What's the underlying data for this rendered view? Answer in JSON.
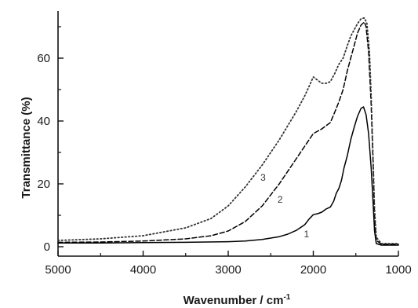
{
  "chart_data": {
    "type": "line",
    "xlabel": "Wavenumber / cm",
    "xlabel_sup": "-1",
    "ylabel": "Transmittance (%)",
    "xlim": [
      5000,
      1000
    ],
    "ylim": [
      -3,
      75
    ],
    "x_reversed": true,
    "x_ticks": [
      5000,
      4000,
      3000,
      2000,
      1000
    ],
    "y_ticks": [
      0,
      20,
      40,
      60
    ],
    "grid": false,
    "series": [
      {
        "name": "1",
        "style": "solid",
        "color": "#000000",
        "label_at": [
          2080,
          3
        ],
        "points": [
          [
            5000,
            1.2
          ],
          [
            4500,
            1.2
          ],
          [
            4000,
            1.3
          ],
          [
            3500,
            1.4
          ],
          [
            3000,
            1.6
          ],
          [
            2800,
            1.8
          ],
          [
            2600,
            2.3
          ],
          [
            2400,
            3.2
          ],
          [
            2300,
            4
          ],
          [
            2200,
            5.2
          ],
          [
            2100,
            7
          ],
          [
            2050,
            8.8
          ],
          [
            2000,
            10.2
          ],
          [
            1950,
            10.5
          ],
          [
            1900,
            11
          ],
          [
            1850,
            12
          ],
          [
            1800,
            12.6
          ],
          [
            1760,
            14.5
          ],
          [
            1730,
            17
          ],
          [
            1700,
            18.5
          ],
          [
            1670,
            21
          ],
          [
            1640,
            25
          ],
          [
            1600,
            29
          ],
          [
            1560,
            34
          ],
          [
            1520,
            38
          ],
          [
            1480,
            41.5
          ],
          [
            1440,
            44
          ],
          [
            1410,
            44.5
          ],
          [
            1380,
            42
          ],
          [
            1350,
            36
          ],
          [
            1320,
            25
          ],
          [
            1300,
            15
          ],
          [
            1280,
            5
          ],
          [
            1260,
            1
          ],
          [
            1200,
            0.5
          ],
          [
            1000,
            0.5
          ]
        ]
      },
      {
        "name": "2",
        "style": "dashed",
        "color": "#000000",
        "label_at": [
          2390,
          14
        ],
        "points": [
          [
            5000,
            1.4
          ],
          [
            4500,
            1.5
          ],
          [
            4000,
            1.8
          ],
          [
            3500,
            2.5
          ],
          [
            3200,
            3.5
          ],
          [
            3000,
            5
          ],
          [
            2800,
            8
          ],
          [
            2600,
            13
          ],
          [
            2400,
            20
          ],
          [
            2200,
            28
          ],
          [
            2100,
            32
          ],
          [
            2000,
            36
          ],
          [
            1900,
            37.5
          ],
          [
            1800,
            39.5
          ],
          [
            1760,
            42
          ],
          [
            1700,
            46
          ],
          [
            1650,
            50
          ],
          [
            1600,
            56
          ],
          [
            1560,
            60
          ],
          [
            1520,
            64
          ],
          [
            1480,
            68
          ],
          [
            1440,
            70.5
          ],
          [
            1400,
            71.5
          ],
          [
            1380,
            70
          ],
          [
            1350,
            62
          ],
          [
            1320,
            45
          ],
          [
            1300,
            28
          ],
          [
            1280,
            10
          ],
          [
            1260,
            2
          ],
          [
            1200,
            0.8
          ],
          [
            1000,
            0.8
          ]
        ]
      },
      {
        "name": "3",
        "style": "dotted",
        "color": "#333333",
        "label_at": [
          2590,
          21
        ],
        "points": [
          [
            5000,
            2
          ],
          [
            4500,
            2.5
          ],
          [
            4000,
            3.5
          ],
          [
            3500,
            6
          ],
          [
            3200,
            9
          ],
          [
            3000,
            13
          ],
          [
            2800,
            19
          ],
          [
            2600,
            26
          ],
          [
            2400,
            34
          ],
          [
            2200,
            43
          ],
          [
            2100,
            48
          ],
          [
            2050,
            51
          ],
          [
            2000,
            54
          ],
          [
            1950,
            53
          ],
          [
            1900,
            52
          ],
          [
            1850,
            52
          ],
          [
            1800,
            52.5
          ],
          [
            1750,
            55
          ],
          [
            1700,
            58
          ],
          [
            1650,
            60
          ],
          [
            1600,
            64
          ],
          [
            1560,
            67
          ],
          [
            1520,
            69
          ],
          [
            1480,
            71
          ],
          [
            1440,
            72.5
          ],
          [
            1400,
            72.8
          ],
          [
            1370,
            71
          ],
          [
            1340,
            62
          ],
          [
            1320,
            48
          ],
          [
            1300,
            30
          ],
          [
            1280,
            12
          ],
          [
            1260,
            3
          ],
          [
            1200,
            1
          ],
          [
            1000,
            1
          ]
        ]
      }
    ]
  }
}
